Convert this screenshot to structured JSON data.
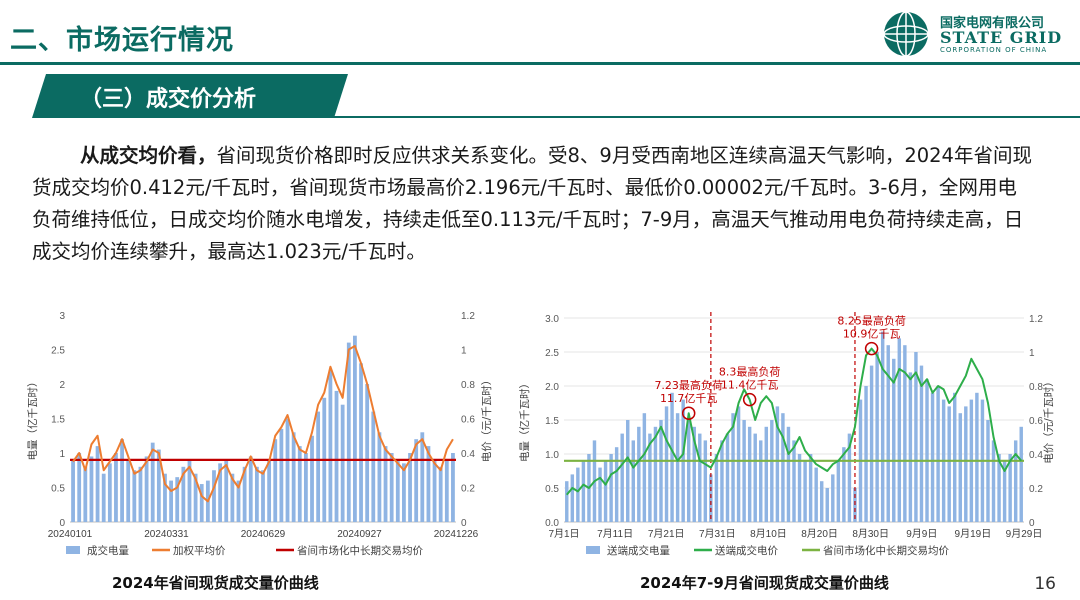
{
  "header": {
    "title": "二、市场运行情况",
    "logo": {
      "cn": "国家电网有限公司",
      "en": "STATE GRID",
      "sub": "CORPORATION OF CHINA"
    }
  },
  "section": {
    "label": "（三）成交价分析"
  },
  "paragraph": {
    "lead": "从成交均价看，",
    "body": "省间现货价格即时反应供求关系变化。受8、9月受西南地区连续高温天气影响，2024年省间现货成交均价0.412元/千瓦时，省间现货市场最高价2.196元/千瓦时、最低价0.00002元/千瓦时。3-6月，全网用电负荷维持低位，日成交均价随水电增发，持续走低至0.113元/千瓦时；7-9月，高温天气推动用电负荷持续走高，日成交均价连续攀升，最高达1.023元/千瓦时。"
  },
  "page_number": "16",
  "colors": {
    "brand": "#0b6b62",
    "bar_blue": "#8fb4e3",
    "line_orange": "#ed7d31",
    "line_red": "#c00000",
    "line_green": "#2eae4a",
    "line_lightgreen": "#7cb342",
    "annotation_red": "#c00000"
  },
  "chart_data": [
    {
      "type": "bar",
      "caption": "2024年省间现货成交量价曲线",
      "x_ticks": [
        "20240101",
        "20240331",
        "20240629",
        "20240927",
        "20241226"
      ],
      "ylabel_left": "电量（亿千瓦时）",
      "ylabel_right": "电价（元/千瓦时）",
      "ylim_left": [
        0,
        3
      ],
      "ylim_right": [
        0,
        1.2
      ],
      "y_ticks_left": [
        "0",
        "0.5",
        "1",
        "1.5",
        "2",
        "2.5",
        "3"
      ],
      "y_ticks_right": [
        "0",
        "0.2",
        "0.4",
        "0.6",
        "0.8",
        "1",
        "1.2"
      ],
      "legend": [
        "成交电量",
        "加权平均价",
        "省间市场化中长期交易均价"
      ],
      "series": [
        {
          "name": "成交电量",
          "kind": "bar",
          "axis": "left",
          "values": [
            0.9,
            1.0,
            0.8,
            0.95,
            1.1,
            0.7,
            0.85,
            1.0,
            1.2,
            0.9,
            0.75,
            0.8,
            0.95,
            1.15,
            1.05,
            0.7,
            0.6,
            0.65,
            0.8,
            0.9,
            0.7,
            0.55,
            0.6,
            0.75,
            0.85,
            0.9,
            0.7,
            0.6,
            0.8,
            0.95,
            0.8,
            0.75,
            0.9,
            1.2,
            1.35,
            1.5,
            1.3,
            1.1,
            1.0,
            1.25,
            1.6,
            1.8,
            2.2,
            1.9,
            1.7,
            2.6,
            2.7,
            2.3,
            2.0,
            1.6,
            1.3,
            1.1,
            1.0,
            0.9,
            0.85,
            1.0,
            1.2,
            1.3,
            1.1,
            0.9,
            0.8,
            0.9,
            1.0
          ]
        },
        {
          "name": "加权平均价",
          "kind": "line",
          "axis": "right",
          "values": [
            0.35,
            0.4,
            0.3,
            0.45,
            0.5,
            0.3,
            0.35,
            0.4,
            0.48,
            0.38,
            0.28,
            0.3,
            0.35,
            0.42,
            0.4,
            0.22,
            0.18,
            0.2,
            0.28,
            0.32,
            0.25,
            0.15,
            0.12,
            0.2,
            0.3,
            0.33,
            0.25,
            0.2,
            0.3,
            0.38,
            0.3,
            0.28,
            0.35,
            0.5,
            0.55,
            0.62,
            0.5,
            0.42,
            0.4,
            0.52,
            0.68,
            0.75,
            0.9,
            0.8,
            0.72,
            1.0,
            1.02,
            0.92,
            0.8,
            0.65,
            0.5,
            0.42,
            0.38,
            0.34,
            0.3,
            0.36,
            0.45,
            0.48,
            0.4,
            0.34,
            0.3,
            0.42,
            0.48
          ]
        },
        {
          "name": "省间市场化中长期交易均价",
          "kind": "constant",
          "axis": "right",
          "value": 0.36
        }
      ]
    },
    {
      "type": "bar",
      "caption": "2024年7-9月省间现货成交量价曲线",
      "x_ticks": [
        "7月1日",
        "7月11日",
        "7月21日",
        "7月31日",
        "8月10日",
        "8月20日",
        "8月30日",
        "9月9日",
        "9月19日",
        "9月29日"
      ],
      "ylabel_left": "电量（亿千瓦时）",
      "ylabel_right": "电价（元/千瓦时）",
      "ylim_left": [
        0,
        3.0
      ],
      "ylim_right": [
        0,
        1.2
      ],
      "y_ticks_left": [
        "0.0",
        "0.5",
        "1.0",
        "1.5",
        "2.0",
        "2.5",
        "3.0"
      ],
      "y_ticks_right": [
        "0",
        "0.2",
        "0.4",
        "0.6",
        "0.8",
        "1",
        "1.2"
      ],
      "legend": [
        "送端成交电量",
        "送端成交电价",
        "省间市场化中长期交易均价"
      ],
      "annotations": [
        {
          "line1": "7.23最高负荷",
          "line2": "11.7亿千瓦",
          "index": 22
        },
        {
          "line1": "8.3最高负荷",
          "line2": "11.4亿千瓦",
          "index": 33
        },
        {
          "line1": "8.25最高负荷",
          "line2": "10.9亿千瓦",
          "index": 55
        }
      ],
      "vlines": [
        26,
        52
      ],
      "series": [
        {
          "name": "送端成交电量",
          "kind": "bar",
          "axis": "left",
          "values": [
            0.6,
            0.7,
            0.8,
            0.9,
            1.0,
            1.2,
            0.8,
            0.9,
            1.0,
            1.1,
            1.3,
            1.5,
            1.2,
            1.4,
            1.6,
            1.3,
            1.4,
            1.5,
            1.7,
            1.9,
            1.6,
            1.8,
            1.5,
            1.4,
            1.3,
            1.2,
            0.7,
            1.0,
            1.2,
            1.3,
            1.6,
            1.7,
            1.5,
            1.4,
            1.3,
            1.2,
            1.4,
            1.5,
            1.7,
            1.6,
            1.4,
            1.2,
            1.0,
            0.9,
            1.0,
            0.8,
            0.6,
            0.5,
            0.7,
            0.9,
            1.1,
            1.3,
            0.5,
            1.8,
            2.0,
            2.3,
            2.5,
            2.8,
            2.6,
            2.4,
            2.7,
            2.6,
            2.2,
            2.5,
            2.3,
            2.1,
            1.9,
            2.0,
            1.8,
            1.7,
            1.9,
            1.6,
            1.7,
            1.8,
            1.9,
            1.8,
            1.5,
            1.2,
            1.0,
            0.9,
            1.0,
            1.2,
            1.4
          ]
        },
        {
          "name": "送端成交电价",
          "kind": "line",
          "axis": "right",
          "values": [
            0.16,
            0.2,
            0.18,
            0.22,
            0.2,
            0.24,
            0.26,
            0.22,
            0.28,
            0.3,
            0.34,
            0.38,
            0.32,
            0.36,
            0.4,
            0.46,
            0.5,
            0.56,
            0.48,
            0.42,
            0.36,
            0.4,
            0.64,
            0.48,
            0.36,
            0.34,
            0.32,
            0.38,
            0.46,
            0.52,
            0.56,
            0.7,
            0.78,
            0.72,
            0.6,
            0.7,
            0.74,
            0.7,
            0.56,
            0.5,
            0.4,
            0.44,
            0.5,
            0.42,
            0.38,
            0.34,
            0.32,
            0.3,
            0.34,
            0.36,
            0.4,
            0.44,
            0.56,
            0.8,
            0.98,
            1.02,
            0.98,
            0.9,
            0.86,
            0.82,
            0.9,
            0.88,
            0.84,
            0.88,
            0.8,
            0.84,
            0.76,
            0.8,
            0.78,
            0.7,
            0.74,
            0.8,
            0.86,
            0.96,
            0.9,
            0.84,
            0.7,
            0.5,
            0.36,
            0.3,
            0.36,
            0.4,
            0.36
          ]
        },
        {
          "name": "省间市场化中长期交易均价",
          "kind": "constant",
          "axis": "right",
          "value": 0.36
        }
      ]
    }
  ]
}
